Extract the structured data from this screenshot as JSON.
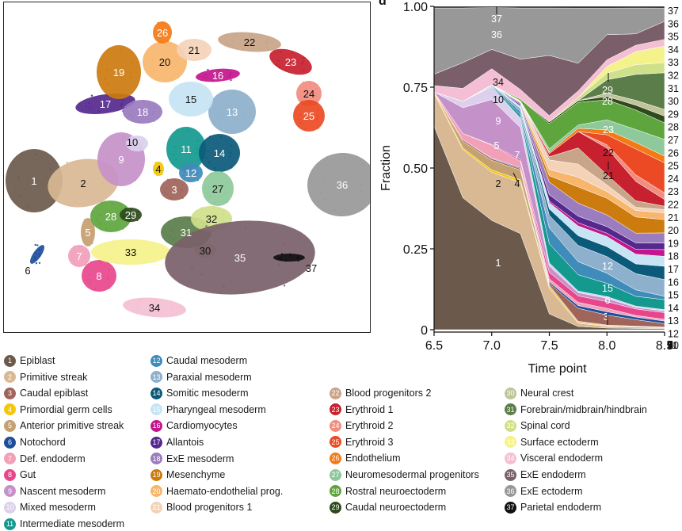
{
  "panel_letter": "d",
  "legend": [
    {
      "n": "1",
      "label": "Epiblast",
      "color": "#6b5a4c"
    },
    {
      "n": "2",
      "label": "Primitive streak",
      "color": "#d9b894"
    },
    {
      "n": "3",
      "label": "Caudal epiblast",
      "color": "#a0645a"
    },
    {
      "n": "4",
      "label": "Primordial germ cells",
      "color": "#f4c60c"
    },
    {
      "n": "5",
      "label": "Anterior primitive streak",
      "color": "#c5a070"
    },
    {
      "n": "6",
      "label": "Notochord",
      "color": "#1d4e9b"
    },
    {
      "n": "7",
      "label": "Def. endoderm",
      "color": "#f2a0b8"
    },
    {
      "n": "8",
      "label": "Gut",
      "color": "#e8468c"
    },
    {
      "n": "9",
      "label": "Nascent mesoderm",
      "color": "#c591c9"
    },
    {
      "n": "10",
      "label": "Mixed mesoderm",
      "color": "#dcd0ec"
    },
    {
      "n": "11",
      "label": "Intermediate mesoderm",
      "color": "#13998e"
    },
    {
      "n": "12",
      "label": "Caudal mesoderm",
      "color": "#3f8bb9"
    },
    {
      "n": "13",
      "label": "Paraxial mesoderm",
      "color": "#8db0cc"
    },
    {
      "n": "14",
      "label": "Somitic mesoderm",
      "color": "#0b5a7a"
    },
    {
      "n": "15",
      "label": "Pharyngeal mesoderm",
      "color": "#c6e4f4"
    },
    {
      "n": "16",
      "label": "Cardiomyocytes",
      "color": "#c3168c"
    },
    {
      "n": "17",
      "label": "Allantois",
      "color": "#55288e"
    },
    {
      "n": "18",
      "label": "ExE mesoderm",
      "color": "#9a7cbf"
    },
    {
      "n": "19",
      "label": "Mesenchyme",
      "color": "#cc7b0f"
    },
    {
      "n": "20",
      "label": "Haemato-endothelial prog.",
      "color": "#f7b66c"
    },
    {
      "n": "21",
      "label": "Blood progenitors 1",
      "color": "#f4d2b8"
    },
    {
      "n": "22",
      "label": "Blood progenitors 2",
      "color": "#c8a488"
    },
    {
      "n": "23",
      "label": "Erythroid 1",
      "color": "#c7202e"
    },
    {
      "n": "24",
      "label": "Erythroid 2",
      "color": "#f28c7e"
    },
    {
      "n": "25",
      "label": "Erythroid 3",
      "color": "#eb4a24"
    },
    {
      "n": "26",
      "label": "Endothelium",
      "color": "#f47a16"
    },
    {
      "n": "27",
      "label": "Neuromesodermal progenitors",
      "color": "#8dc99a"
    },
    {
      "n": "28",
      "label": "Rostral neuroectoderm",
      "color": "#5ea53e"
    },
    {
      "n": "29",
      "label": "Caudal neuroectoderm",
      "color": "#2e4a1e"
    },
    {
      "n": "30",
      "label": "Neural crest",
      "color": "#c0c498"
    },
    {
      "n": "31",
      "label": "Forebrain/midbrain/hindbrain",
      "color": "#5a7d4a"
    },
    {
      "n": "32",
      "label": "Spinal cord",
      "color": "#cfe08a"
    },
    {
      "n": "33",
      "label": "Surface ectoderm",
      "color": "#f4f28a"
    },
    {
      "n": "34",
      "label": "Visceral endoderm",
      "color": "#f4bfd4"
    },
    {
      "n": "35",
      "label": "ExE endoderm",
      "color": "#7a5f6a"
    },
    {
      "n": "36",
      "label": "ExE ectoderm",
      "color": "#989898"
    },
    {
      "n": "37",
      "label": "Parietal endoderm",
      "color": "#111111"
    }
  ],
  "umap_labels": [
    "1",
    "2",
    "3",
    "4",
    "5",
    "6",
    "7",
    "8",
    "9",
    "10",
    "11",
    "12",
    "13",
    "14",
    "15",
    "16",
    "17",
    "18",
    "19",
    "20",
    "21",
    "22",
    "23",
    "24",
    "25",
    "26",
    "27",
    "28",
    "29",
    "30",
    "31",
    "32",
    "33",
    "34",
    "35",
    "36",
    "37"
  ],
  "area_inline_labels": [
    "37",
    "36",
    "34",
    "10",
    "9",
    "5",
    "7",
    "2",
    "4",
    "1",
    "23",
    "22",
    "21",
    "29",
    "28",
    "12",
    "15",
    "6",
    "3"
  ],
  "chart_data": {
    "type": "area",
    "title": "",
    "xlabel": "Time point",
    "ylabel": "Fraction",
    "x": [
      6.5,
      6.75,
      7.0,
      7.25,
      7.5,
      7.75,
      8.0,
      8.25,
      8.5
    ],
    "xticks": [
      "6.5",
      "7.0",
      "7.5",
      "8.0",
      "8.5"
    ],
    "yticks": [
      "0",
      "0.25",
      "0.50",
      "0.75",
      "1.00"
    ],
    "xlim": [
      6.5,
      8.5
    ],
    "ylim": [
      0,
      1
    ],
    "stacking_order_bottom_to_top": [
      "1",
      "2",
      "4",
      "5",
      "3",
      "6",
      "7",
      "8",
      "9",
      "10",
      "11",
      "12",
      "13",
      "14",
      "15",
      "16",
      "17",
      "18",
      "19",
      "20",
      "21",
      "22",
      "23",
      "24",
      "25",
      "26",
      "27",
      "28",
      "29",
      "30",
      "31",
      "32",
      "33",
      "34",
      "35",
      "36",
      "37"
    ],
    "series": [
      {
        "name": "1",
        "values": [
          0.63,
          0.41,
          0.34,
          0.3,
          0.05,
          0.01,
          0.005,
          0.004,
          0.003
        ]
      },
      {
        "name": "2",
        "values": [
          0.1,
          0.15,
          0.15,
          0.16,
          0.08,
          0.01,
          0.005,
          0.004,
          0.003
        ]
      },
      {
        "name": "4",
        "values": [
          0.005,
          0.005,
          0.007,
          0.008,
          0.006,
          0.003,
          0.002,
          0.001,
          0.001
        ]
      },
      {
        "name": "5",
        "values": [
          0.0,
          0.02,
          0.03,
          0.03,
          0.005,
          0.003,
          0.002,
          0.002,
          0.001
        ]
      },
      {
        "name": "3",
        "values": [
          0.0,
          0.005,
          0.005,
          0.005,
          0.005,
          0.04,
          0.03,
          0.02,
          0.01
        ]
      },
      {
        "name": "6",
        "values": [
          0.0,
          0.0,
          0.002,
          0.003,
          0.005,
          0.008,
          0.01,
          0.008,
          0.008
        ]
      },
      {
        "name": "7",
        "values": [
          0.0,
          0.02,
          0.04,
          0.02,
          0.01,
          0.01,
          0.01,
          0.005,
          0.005
        ]
      },
      {
        "name": "8",
        "values": [
          0.0,
          0.0,
          0.002,
          0.005,
          0.02,
          0.02,
          0.02,
          0.02,
          0.02
        ]
      },
      {
        "name": "9",
        "values": [
          0.0,
          0.08,
          0.14,
          0.1,
          0.02,
          0.01,
          0.01,
          0.005,
          0.005
        ]
      },
      {
        "name": "10",
        "values": [
          0.0,
          0.02,
          0.04,
          0.03,
          0.01,
          0.005,
          0.005,
          0.004,
          0.004
        ]
      },
      {
        "name": "11",
        "values": [
          0.0,
          0.0,
          0.002,
          0.01,
          0.06,
          0.05,
          0.04,
          0.03,
          0.03
        ]
      },
      {
        "name": "12",
        "values": [
          0.0,
          0.0,
          0.002,
          0.01,
          0.05,
          0.04,
          0.03,
          0.02,
          0.01
        ]
      },
      {
        "name": "13",
        "values": [
          0.0,
          0.0,
          0.002,
          0.01,
          0.04,
          0.05,
          0.05,
          0.05,
          0.05
        ]
      },
      {
        "name": "14",
        "values": [
          0.0,
          0.0,
          0.0,
          0.002,
          0.02,
          0.03,
          0.03,
          0.03,
          0.04
        ]
      },
      {
        "name": "15",
        "values": [
          0.0,
          0.0,
          0.0,
          0.005,
          0.02,
          0.03,
          0.03,
          0.03,
          0.03
        ]
      },
      {
        "name": "16",
        "values": [
          0.0,
          0.0,
          0.0,
          0.0,
          0.005,
          0.01,
          0.01,
          0.015,
          0.02
        ]
      },
      {
        "name": "17",
        "values": [
          0.0,
          0.0,
          0.0,
          0.005,
          0.02,
          0.02,
          0.02,
          0.02,
          0.02
        ]
      },
      {
        "name": "18",
        "values": [
          0.0,
          0.0,
          0.0,
          0.005,
          0.04,
          0.04,
          0.035,
          0.03,
          0.03
        ]
      },
      {
        "name": "19",
        "values": [
          0.0,
          0.0,
          0.0,
          0.002,
          0.02,
          0.05,
          0.05,
          0.05,
          0.04
        ]
      },
      {
        "name": "20",
        "values": [
          0.0,
          0.0,
          0.0,
          0.002,
          0.02,
          0.03,
          0.02,
          0.02,
          0.02
        ]
      },
      {
        "name": "21",
        "values": [
          0.0,
          0.0,
          0.0,
          0.003,
          0.03,
          0.04,
          0.02,
          0.01,
          0.01
        ]
      },
      {
        "name": "22",
        "values": [
          0.0,
          0.0,
          0.0,
          0.0,
          0.01,
          0.05,
          0.03,
          0.02,
          0.01
        ]
      },
      {
        "name": "23",
        "values": [
          0.0,
          0.0,
          0.0,
          0.0,
          0.01,
          0.05,
          0.08,
          0.06,
          0.02
        ]
      },
      {
        "name": "24",
        "values": [
          0.0,
          0.0,
          0.0,
          0.0,
          0.0,
          0.0,
          0.01,
          0.02,
          0.02
        ]
      },
      {
        "name": "25",
        "values": [
          0.0,
          0.0,
          0.0,
          0.0,
          0.0,
          0.0,
          0.03,
          0.08,
          0.09
        ]
      },
      {
        "name": "26",
        "values": [
          0.0,
          0.0,
          0.0,
          0.0,
          0.005,
          0.01,
          0.015,
          0.02,
          0.02
        ]
      },
      {
        "name": "27",
        "values": [
          0.0,
          0.0,
          0.0,
          0.0,
          0.01,
          0.01,
          0.03,
          0.04,
          0.05
        ]
      },
      {
        "name": "28",
        "values": [
          0.0,
          0.0,
          0.0,
          0.005,
          0.08,
          0.07,
          0.06,
          0.06,
          0.05
        ]
      },
      {
        "name": "29",
        "values": [
          0.0,
          0.0,
          0.0,
          0.0,
          0.005,
          0.005,
          0.01,
          0.015,
          0.02
        ]
      },
      {
        "name": "30",
        "values": [
          0.0,
          0.0,
          0.0,
          0.0,
          0.0,
          0.0,
          0.01,
          0.015,
          0.02
        ]
      },
      {
        "name": "31",
        "values": [
          0.0,
          0.0,
          0.0,
          0.0,
          0.0,
          0.0,
          0.04,
          0.08,
          0.11
        ]
      },
      {
        "name": "32",
        "values": [
          0.0,
          0.0,
          0.0,
          0.0,
          0.0,
          0.01,
          0.02,
          0.03,
          0.03
        ]
      },
      {
        "name": "33",
        "values": [
          0.0,
          0.0,
          0.0,
          0.0,
          0.0,
          0.0,
          0.02,
          0.04,
          0.05
        ]
      },
      {
        "name": "34",
        "values": [
          0.02,
          0.04,
          0.05,
          0.03,
          0.02,
          0.02,
          0.02,
          0.02,
          0.02
        ]
      },
      {
        "name": "35",
        "values": [
          0.035,
          0.08,
          0.06,
          0.095,
          0.19,
          0.085,
          0.075,
          0.035,
          0.054
        ]
      },
      {
        "name": "36",
        "values": [
          0.205,
          0.17,
          0.13,
          0.16,
          0.15,
          0.17,
          0.08,
          0.08,
          0.04
        ]
      },
      {
        "name": "37",
        "values": [
          0.005,
          0.005,
          0.004,
          0.005,
          0.005,
          0.005,
          0.005,
          0.005,
          0.005
        ]
      }
    ]
  }
}
